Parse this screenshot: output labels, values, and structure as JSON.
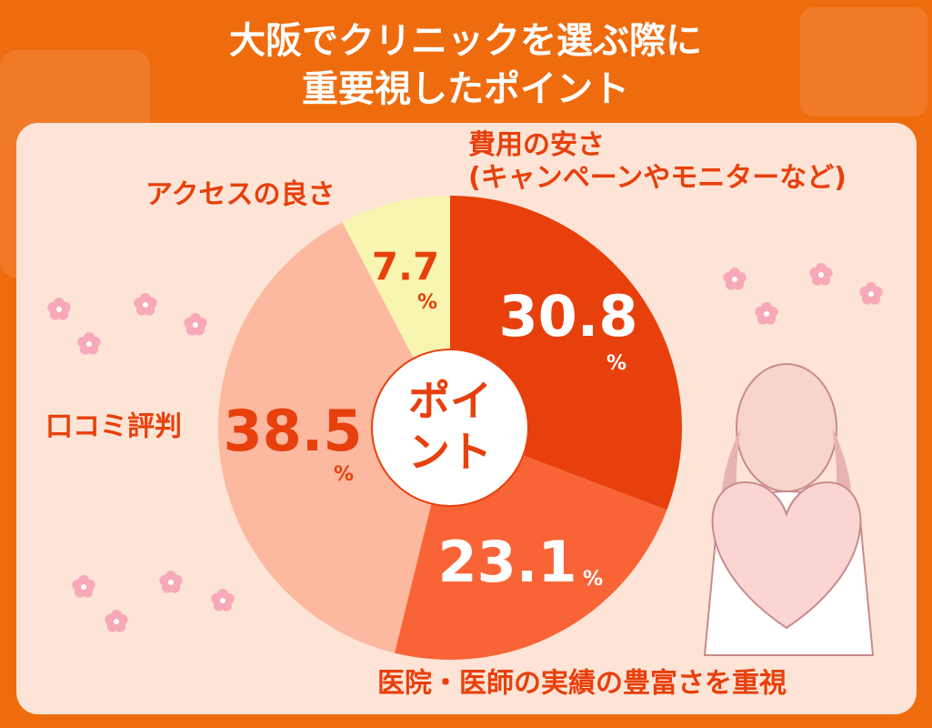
{
  "chart_data": {
    "type": "pie",
    "title_lines": [
      "大阪でクリニックを選ぶ際に",
      "重要視したポイント"
    ],
    "center_label_lines": [
      "ポイ",
      "ント"
    ],
    "categories": [
      "費用の安さ(キャンペーンやモニターなど)",
      "医院・医師の実績の豊富さを重視",
      "口コミ評判",
      "アクセスの良さ"
    ],
    "values": [
      30.8,
      23.1,
      38.5,
      7.7
    ],
    "value_unit": "%",
    "colors": [
      "#e8400c",
      "#f96436",
      "#fdb8a0",
      "#f8f5b0"
    ]
  }
}
